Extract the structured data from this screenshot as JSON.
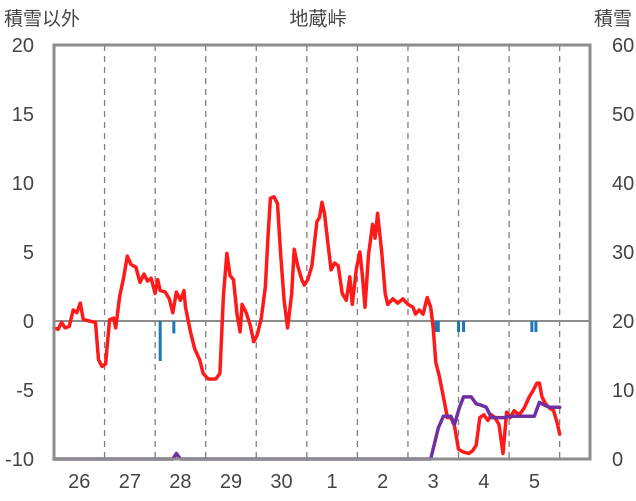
{
  "chart_data": {
    "type": "line",
    "title": "地蔵峠",
    "left_axis_label": "積雪以外",
    "right_axis_label": "積雪",
    "left_ylim": [
      -10,
      20
    ],
    "left_yticks": [
      -10,
      -5,
      0,
      5,
      10,
      15,
      20
    ],
    "right_ylim": [
      0,
      60
    ],
    "right_yticks": [
      0,
      10,
      20,
      30,
      40,
      50,
      60
    ],
    "xlim": [
      0,
      10.6
    ],
    "x_day_labels": [
      {
        "label": "26",
        "x": 0.5
      },
      {
        "label": "27",
        "x": 1.5
      },
      {
        "label": "28",
        "x": 2.5
      },
      {
        "label": "29",
        "x": 3.5
      },
      {
        "label": "30",
        "x": 4.5
      },
      {
        "label": "1",
        "x": 5.5
      },
      {
        "label": "2",
        "x": 6.5
      },
      {
        "label": "3",
        "x": 7.5
      },
      {
        "label": "4",
        "x": 8.5
      },
      {
        "label": "5",
        "x": 9.5
      }
    ],
    "grid": {
      "vertical_dashed": true,
      "zero_line": true
    },
    "series": [
      {
        "name": "",
        "axis": "left",
        "color": "#ff1a1a",
        "points": [
          [
            0,
            -0.5
          ],
          [
            0.08,
            -0.6
          ],
          [
            0.15,
            -0.1
          ],
          [
            0.22,
            -0.5
          ],
          [
            0.3,
            -0.4
          ],
          [
            0.38,
            0.8
          ],
          [
            0.45,
            0.6
          ],
          [
            0.52,
            1.3
          ],
          [
            0.58,
            0.1
          ],
          [
            0.7,
            0.0
          ],
          [
            0.82,
            -0.1
          ],
          [
            0.88,
            -2.8
          ],
          [
            0.95,
            -3.3
          ],
          [
            1.02,
            -3.1
          ],
          [
            1.1,
            0.1
          ],
          [
            1.18,
            0.2
          ],
          [
            1.22,
            -0.5
          ],
          [
            1.3,
            1.8
          ],
          [
            1.38,
            3.2
          ],
          [
            1.45,
            4.7
          ],
          [
            1.52,
            4.1
          ],
          [
            1.62,
            3.9
          ],
          [
            1.7,
            2.8
          ],
          [
            1.78,
            3.4
          ],
          [
            1.85,
            2.9
          ],
          [
            1.92,
            3.1
          ],
          [
            2.0,
            2.0
          ],
          [
            2.05,
            3.0
          ],
          [
            2.1,
            2.2
          ],
          [
            2.2,
            2.1
          ],
          [
            2.28,
            1.6
          ],
          [
            2.35,
            0.6
          ],
          [
            2.42,
            2.1
          ],
          [
            2.5,
            1.5
          ],
          [
            2.57,
            2.2
          ],
          [
            2.6,
            1.0
          ],
          [
            2.7,
            -0.8
          ],
          [
            2.78,
            -2.0
          ],
          [
            2.88,
            -2.8
          ],
          [
            2.95,
            -3.8
          ],
          [
            3.05,
            -4.2
          ],
          [
            3.2,
            -4.2
          ],
          [
            3.28,
            -3.8
          ],
          [
            3.35,
            1.8
          ],
          [
            3.42,
            4.9
          ],
          [
            3.48,
            3.3
          ],
          [
            3.55,
            3.0
          ],
          [
            3.62,
            0.5
          ],
          [
            3.68,
            -0.8
          ],
          [
            3.72,
            1.2
          ],
          [
            3.8,
            0.6
          ],
          [
            3.88,
            -0.3
          ],
          [
            3.95,
            -1.5
          ],
          [
            4.02,
            -1.0
          ],
          [
            4.1,
            0.2
          ],
          [
            4.18,
            2.5
          ],
          [
            4.23,
            6.0
          ],
          [
            4.28,
            8.9
          ],
          [
            4.35,
            9.0
          ],
          [
            4.42,
            8.5
          ],
          [
            4.48,
            5.0
          ],
          [
            4.55,
            1.5
          ],
          [
            4.62,
            -0.5
          ],
          [
            4.7,
            2.0
          ],
          [
            4.75,
            5.2
          ],
          [
            4.82,
            4.0
          ],
          [
            4.9,
            3.0
          ],
          [
            4.95,
            2.6
          ],
          [
            5.02,
            3.0
          ],
          [
            5.1,
            4.0
          ],
          [
            5.2,
            7.2
          ],
          [
            5.25,
            7.5
          ],
          [
            5.3,
            8.6
          ],
          [
            5.35,
            7.8
          ],
          [
            5.42,
            5.5
          ],
          [
            5.48,
            3.7
          ],
          [
            5.55,
            4.2
          ],
          [
            5.62,
            4.0
          ],
          [
            5.7,
            2.0
          ],
          [
            5.78,
            1.5
          ],
          [
            5.85,
            3.2
          ],
          [
            5.9,
            1.2
          ],
          [
            5.98,
            3.8
          ],
          [
            6.05,
            5.0
          ],
          [
            6.1,
            3.2
          ],
          [
            6.15,
            1.0
          ],
          [
            6.22,
            4.8
          ],
          [
            6.3,
            7.0
          ],
          [
            6.35,
            6.0
          ],
          [
            6.4,
            7.8
          ],
          [
            6.48,
            5.0
          ],
          [
            6.55,
            2.0
          ],
          [
            6.6,
            1.2
          ],
          [
            6.7,
            1.6
          ],
          [
            6.8,
            1.3
          ],
          [
            6.9,
            1.6
          ],
          [
            7.0,
            1.2
          ],
          [
            7.1,
            1.0
          ],
          [
            7.15,
            0.5
          ],
          [
            7.22,
            0.8
          ],
          [
            7.3,
            0.5
          ],
          [
            7.38,
            1.7
          ],
          [
            7.45,
            1.0
          ],
          [
            7.5,
            -0.5
          ],
          [
            7.55,
            -3.0
          ],
          [
            7.62,
            -4.0
          ],
          [
            7.7,
            -5.5
          ],
          [
            7.78,
            -7.0
          ],
          [
            7.85,
            -7.0
          ],
          [
            7.92,
            -7.6
          ],
          [
            8.0,
            -9.3
          ],
          [
            8.1,
            -9.5
          ],
          [
            8.2,
            -9.6
          ],
          [
            8.28,
            -9.4
          ],
          [
            8.35,
            -9.0
          ],
          [
            8.42,
            -7.0
          ],
          [
            8.5,
            -6.8
          ],
          [
            8.58,
            -7.2
          ],
          [
            8.65,
            -6.8
          ],
          [
            8.72,
            -7.0
          ],
          [
            8.8,
            -7.5
          ],
          [
            8.88,
            -9.6
          ],
          [
            8.95,
            -6.6
          ],
          [
            9.02,
            -7.0
          ],
          [
            9.1,
            -6.5
          ],
          [
            9.2,
            -6.8
          ],
          [
            9.3,
            -6.3
          ],
          [
            9.4,
            -5.5
          ],
          [
            9.48,
            -5.0
          ],
          [
            9.55,
            -4.5
          ],
          [
            9.6,
            -4.5
          ],
          [
            9.65,
            -5.5
          ],
          [
            9.72,
            -6.0
          ],
          [
            9.8,
            -6.3
          ],
          [
            9.88,
            -6.5
          ],
          [
            9.92,
            -7.0
          ],
          [
            9.96,
            -7.5
          ],
          [
            10.0,
            -8.2
          ]
        ]
      },
      {
        "name": "",
        "axis": "right",
        "color": "#7030a0",
        "points": [
          [
            0,
            0
          ],
          [
            2.35,
            0
          ],
          [
            2.42,
            0.8
          ],
          [
            2.5,
            0
          ],
          [
            7.45,
            0
          ],
          [
            7.6,
            4.5
          ],
          [
            7.7,
            6.2
          ],
          [
            7.85,
            6.2
          ],
          [
            7.92,
            5.0
          ],
          [
            8.02,
            7.5
          ],
          [
            8.1,
            9.0
          ],
          [
            8.25,
            9.0
          ],
          [
            8.35,
            8.0
          ],
          [
            8.45,
            7.8
          ],
          [
            8.55,
            7.5
          ],
          [
            8.65,
            6.0
          ],
          [
            8.9,
            6.0
          ],
          [
            9.05,
            6.2
          ],
          [
            9.5,
            6.2
          ],
          [
            9.6,
            8.2
          ],
          [
            9.7,
            7.8
          ],
          [
            9.8,
            7.5
          ],
          [
            10.0,
            7.5
          ]
        ]
      },
      {
        "name": "",
        "axis": "left",
        "type": "bar",
        "color": "#1f77b4",
        "bars": [
          [
            2.1,
            -2.9
          ],
          [
            2.37,
            -0.9
          ],
          [
            7.55,
            -0.8
          ],
          [
            7.6,
            -0.8
          ],
          [
            8.0,
            -0.8
          ],
          [
            8.1,
            -0.8
          ],
          [
            9.45,
            -0.8
          ],
          [
            9.53,
            -0.8
          ]
        ]
      }
    ]
  }
}
